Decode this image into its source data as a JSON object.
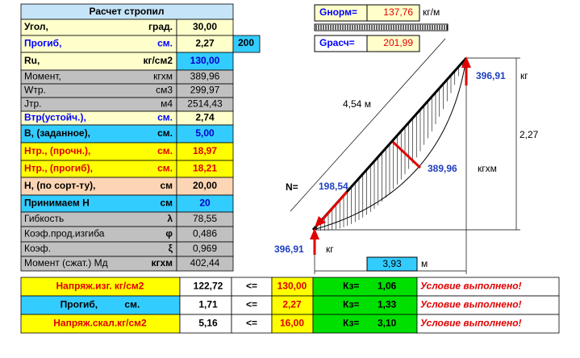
{
  "calc_table": {
    "title": "Расчет стропил",
    "rows": [
      [
        "Угол,",
        "град.",
        "30,00"
      ],
      [
        "Прогиб,",
        "см.",
        "2,27"
      ],
      [
        "Ru,",
        "кг/см2",
        "130,00"
      ],
      [
        "Момент,",
        "кгхм",
        "389,96"
      ],
      [
        "Wтр.",
        "см3",
        "299,97"
      ],
      [
        "Jтр.",
        "м4",
        "2514,43"
      ],
      [
        "Втр(устойч.),",
        "см.",
        "2,74"
      ],
      [
        "В, (заданное),",
        "см.",
        "5,00"
      ],
      [
        "Нтр., (прочн.),",
        "см.",
        "18,97"
      ],
      [
        "Нтр., (прогиб),",
        "см.",
        "18,21"
      ],
      [
        "Н, (по сорт-ту),",
        "см",
        "20,00"
      ],
      [
        "Принимаем Н",
        "см",
        "20"
      ],
      [
        "Гибкость",
        "λ",
        "78,55"
      ],
      [
        "Коэф.прод.изгиба",
        "φ",
        "0,486"
      ],
      [
        "Коэф.",
        "ξ",
        "0,969"
      ],
      [
        "Момент (сжат.) Мд",
        "кгхм",
        "402,44"
      ]
    ],
    "extra": "200"
  },
  "loads": {
    "norm_label": "Gнорм=",
    "norm_value": "137,76",
    "unit": "кг/м",
    "calc_label": "Gрасч=",
    "calc_value": "201,99"
  },
  "diagram": {
    "length": "4,54 м",
    "top_force": "396,91",
    "top_force_unit": "кг",
    "height": "2,27",
    "moment": "389,96",
    "moment_unit": "кгхм",
    "n_label": "N=",
    "n_value": "198,54",
    "bottom_force": "396,91",
    "bottom_force_unit": "кг",
    "span": "3,93",
    "span_unit": "м"
  },
  "checks": {
    "rows": [
      {
        "label": "Напряж.изг. кг/см2",
        "value": "122,72",
        "op": "<=",
        "limit": "130,00",
        "k_label": "Кз=",
        "k_value": "1,06",
        "status": "Условие выполнено!"
      },
      {
        "label": "Прогиб,          см.",
        "value": "1,71",
        "op": "<=",
        "limit": "2,27",
        "k_label": "Кз=",
        "k_value": "1,33",
        "status": "Условие выполнено!"
      },
      {
        "label": "Напряж.скал.кг/см2",
        "value": "5,16",
        "op": "<=",
        "limit": "16,00",
        "k_label": "Кз=",
        "k_value": "3,10",
        "status": "Условие выполнено!"
      }
    ]
  }
}
